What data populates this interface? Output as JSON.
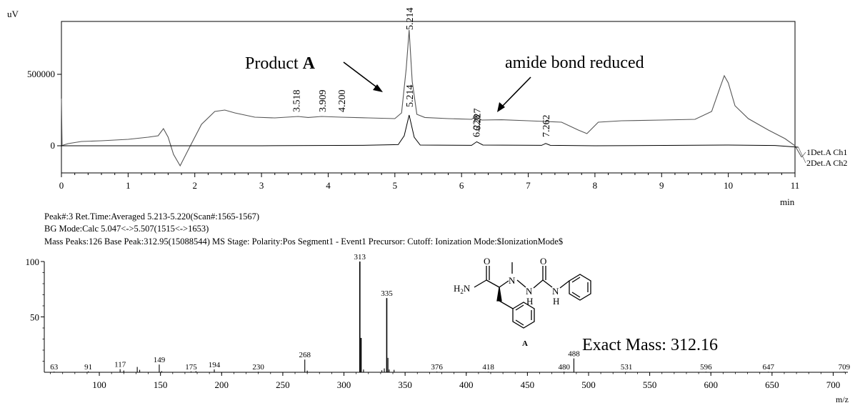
{
  "chart_data": [
    {
      "type": "line",
      "xlabel": "min",
      "ylabel": "uV",
      "xlim": [
        0,
        11
      ],
      "ylim": [
        -200000,
        870000
      ],
      "x_ticks": [
        0,
        1,
        2,
        3,
        4,
        5,
        6,
        7,
        8,
        9,
        10,
        11
      ],
      "y_ticks": [
        0,
        500000
      ],
      "y_tick_labels": [
        "0",
        "500000"
      ],
      "grid": false,
      "legend": "right",
      "series": [
        {
          "name": "1Det.A Ch1",
          "color": "#555555",
          "x": [
            0,
            0.01,
            0.03,
            0.1,
            0.3,
            0.6,
            1.0,
            1.3,
            1.45,
            1.53,
            1.6,
            1.68,
            1.78,
            1.9,
            2.1,
            2.3,
            2.45,
            2.6,
            2.9,
            3.2,
            3.55,
            3.7,
            3.9,
            4.2,
            4.6,
            5.0,
            5.1,
            5.17,
            5.214,
            5.26,
            5.33,
            5.45,
            5.8,
            6.15,
            6.22,
            6.3,
            6.6,
            7.0,
            7.5,
            7.75,
            7.88,
            8.05,
            8.4,
            9.0,
            9.5,
            9.75,
            9.87,
            9.94,
            10.0,
            10.1,
            10.3,
            10.6,
            10.85,
            11.0,
            11.1
          ],
          "y": [
            330000,
            0,
            5000,
            15000,
            30000,
            35000,
            45000,
            60000,
            70000,
            120000,
            60000,
            -60000,
            -140000,
            -30000,
            150000,
            240000,
            250000,
            230000,
            200000,
            195000,
            205000,
            198000,
            205000,
            200000,
            195000,
            190000,
            230000,
            540000,
            810000,
            450000,
            220000,
            198000,
            190000,
            185000,
            205000,
            180000,
            182000,
            175000,
            165000,
            110000,
            85000,
            165000,
            175000,
            180000,
            185000,
            240000,
            400000,
            490000,
            440000,
            280000,
            190000,
            110000,
            50000,
            0,
            -80000
          ]
        },
        {
          "name": "2Det.A Ch2",
          "color": "#000000",
          "x": [
            0,
            1.5,
            3,
            4.5,
            5.05,
            5.14,
            5.214,
            5.29,
            5.38,
            6.15,
            6.227,
            6.32,
            7.2,
            7.262,
            7.33,
            8,
            10,
            10.7,
            11.05
          ],
          "y": [
            0,
            0,
            0,
            3000,
            8000,
            70000,
            215000,
            60000,
            5000,
            3000,
            28000,
            5000,
            3000,
            16000,
            3000,
            0,
            5000,
            2000,
            -10000
          ]
        }
      ],
      "peak_labels": [
        {
          "x": 3.518,
          "label": "3.518"
        },
        {
          "x": 3.909,
          "label": "3.909"
        },
        {
          "x": 4.2,
          "label": "4.200"
        },
        {
          "x": 5.214,
          "label": "5.214"
        },
        {
          "x": 5.214,
          "label": "5.214"
        },
        {
          "x": 6.227,
          "label": "6.227"
        },
        {
          "x": 6.228,
          "label": "6.228"
        },
        {
          "x": 7.262,
          "label": "7.262"
        }
      ],
      "annotations": [
        {
          "text_main": "Product ",
          "text_bold": "A"
        },
        {
          "text": "amide bond reduced"
        }
      ]
    },
    {
      "type": "bar",
      "xlabel": "m/z",
      "xlim": [
        55,
        712
      ],
      "ylim": [
        0,
        100
      ],
      "x_ticks": [
        100,
        150,
        200,
        250,
        300,
        350,
        400,
        450,
        500,
        550,
        600,
        650,
        700
      ],
      "y_ticks": [
        50,
        100
      ],
      "grid": false,
      "peaks": [
        {
          "x": 63,
          "y": 0.6,
          "label": "63"
        },
        {
          "x": 91,
          "y": 0.8,
          "label": "91"
        },
        {
          "x": 117,
          "y": 2.8,
          "label": "117"
        },
        {
          "x": 120,
          "y": 1.6
        },
        {
          "x": 131,
          "y": 4.8
        },
        {
          "x": 133,
          "y": 2.2
        },
        {
          "x": 149,
          "y": 7.0,
          "label": "149"
        },
        {
          "x": 151,
          "y": 1.0
        },
        {
          "x": 175,
          "y": 0.8,
          "label": "175"
        },
        {
          "x": 179,
          "y": 1.0
        },
        {
          "x": 194,
          "y": 2.6,
          "label": "194"
        },
        {
          "x": 230,
          "y": 0.5,
          "label": "230"
        },
        {
          "x": 268,
          "y": 11.5,
          "label": "268"
        },
        {
          "x": 270,
          "y": 1.5
        },
        {
          "x": 313,
          "y": 100,
          "label": "313"
        },
        {
          "x": 314,
          "y": 31.0
        },
        {
          "x": 316,
          "y": 2.5
        },
        {
          "x": 331,
          "y": 1.8
        },
        {
          "x": 333,
          "y": 3.5
        },
        {
          "x": 335,
          "y": 67.0,
          "label": "335"
        },
        {
          "x": 336,
          "y": 13.0
        },
        {
          "x": 337,
          "y": 2.5
        },
        {
          "x": 341,
          "y": 2.2
        },
        {
          "x": 376,
          "y": 0.6,
          "label": "376"
        },
        {
          "x": 418,
          "y": 0.5,
          "label": "418"
        },
        {
          "x": 480,
          "y": 0.6,
          "label": "480"
        },
        {
          "x": 488,
          "y": 12.5,
          "label": "488"
        },
        {
          "x": 531,
          "y": 0.5,
          "label": "531"
        },
        {
          "x": 596,
          "y": 0.5,
          "label": "596"
        },
        {
          "x": 647,
          "y": 0.5,
          "label": "647"
        },
        {
          "x": 709,
          "y": 0.5,
          "label": "709"
        }
      ]
    }
  ],
  "info": {
    "line1": "Peak#:3   Ret.Time:Averaged 5.213-5.220(Scan#:1565-1567)",
    "line2": "BG Mode:Calc 5.047<->5.507(1515<->1653)",
    "line3": "Mass Peaks:126   Base Peak:312.95(15088544)   MS Stage:   Polarity:Pos   Segment1 - Event1   Precursor:   Cutoff:   Ionization Mode:$IonizationMode$"
  },
  "structure": {
    "label": "A",
    "atoms": {
      "h2n": "H",
      "h2n_sub": "2",
      "h2n_n": "N",
      "o1": "O",
      "o2": "O",
      "n1": "N",
      "n2": "N",
      "n3": "N",
      "h1": "H",
      "h2": "H"
    },
    "exact_mass": "Exact Mass: 312.16"
  }
}
